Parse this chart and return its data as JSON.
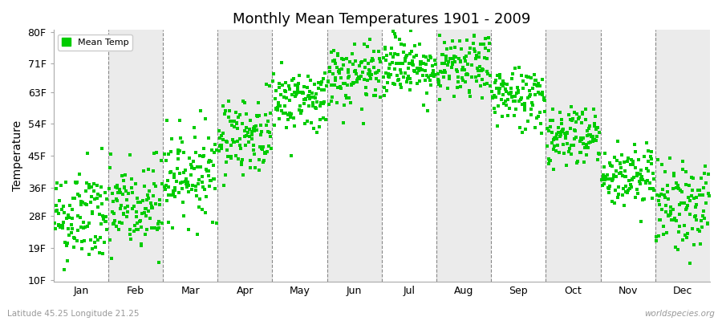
{
  "title": "Monthly Mean Temperatures 1901 - 2009",
  "ylabel": "Temperature",
  "ytick_labels": [
    "10F",
    "19F",
    "28F",
    "36F",
    "45F",
    "54F",
    "63F",
    "71F",
    "80F"
  ],
  "ytick_values": [
    10,
    19,
    28,
    36,
    45,
    54,
    63,
    71,
    80
  ],
  "ylim": [
    10,
    80
  ],
  "months": [
    "Jan",
    "Feb",
    "Mar",
    "Apr",
    "May",
    "Jun",
    "Jul",
    "Aug",
    "Sep",
    "Oct",
    "Nov",
    "Dec"
  ],
  "dot_color": "#00cc00",
  "dot_size": 5,
  "background_color": "#ffffff",
  "band_colors": [
    "#ffffff",
    "#ebebeb"
  ],
  "legend_label": "Mean Temp",
  "footer_left": "Latitude 45.25 Longitude 21.25",
  "footer_right": "worldspecies.org",
  "seed": 42,
  "mean_temps_C": [
    -2.5,
    -1.0,
    4.5,
    10.5,
    16.0,
    19.5,
    21.5,
    21.0,
    16.5,
    10.5,
    4.0,
    -0.5
  ],
  "std_temps": [
    4.0,
    4.0,
    3.5,
    3.0,
    2.5,
    2.5,
    2.5,
    2.5,
    2.5,
    2.5,
    2.5,
    3.5
  ],
  "n_points": 109,
  "n_years": 109
}
